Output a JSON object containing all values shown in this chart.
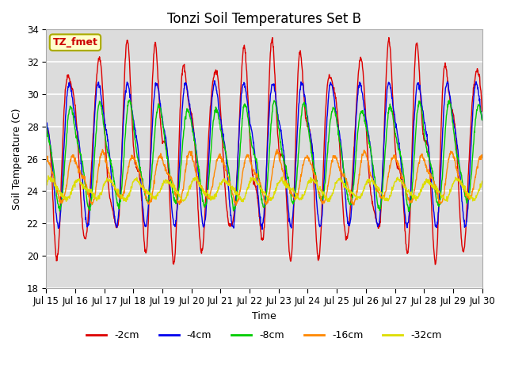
{
  "title": "Tonzi Soil Temperatures Set B",
  "xlabel": "Time",
  "ylabel": "Soil Temperature (C)",
  "ylim": [
    18,
    34
  ],
  "xlim": [
    0,
    15
  ],
  "background_color": "#dcdcdc",
  "grid_color": "white",
  "annotation_text": "TZ_fmet",
  "annotation_bg": "#ffffcc",
  "annotation_border": "#aaaa00",
  "x_tick_labels": [
    "Jul 15",
    "Jul 16",
    "Jul 17",
    "Jul 18",
    "Jul 19",
    "Jul 20",
    "Jul 21",
    "Jul 22",
    "Jul 23",
    "Jul 24",
    "Jul 25",
    "Jul 26",
    "Jul 27",
    "Jul 28",
    "Jul 29",
    "Jul 30"
  ],
  "series": [
    {
      "label": "-2cm",
      "color": "#dd0000",
      "amplitude": 5.2,
      "mean": 26.5,
      "phase_hrs": 14,
      "noise_amp": 1.2,
      "noise_period": 0.45
    },
    {
      "label": "-4cm",
      "color": "#0000ee",
      "amplitude": 4.0,
      "mean": 26.6,
      "phase_hrs": 15,
      "noise_amp": 0.5,
      "noise_period": 0.5
    },
    {
      "label": "-8cm",
      "color": "#00cc00",
      "amplitude": 2.8,
      "mean": 26.2,
      "phase_hrs": 16,
      "noise_amp": 0.3,
      "noise_period": 0.55
    },
    {
      "label": "-16cm",
      "color": "#ff8800",
      "amplitude": 1.3,
      "mean": 24.8,
      "phase_hrs": 18,
      "noise_amp": 0.2,
      "noise_period": 0.6
    },
    {
      "label": "-32cm",
      "color": "#dddd00",
      "amplitude": 0.55,
      "mean": 24.1,
      "phase_hrs": 22,
      "noise_amp": 0.08,
      "noise_period": 0.7
    }
  ],
  "title_fontsize": 12,
  "axis_label_fontsize": 9,
  "tick_fontsize": 8.5
}
